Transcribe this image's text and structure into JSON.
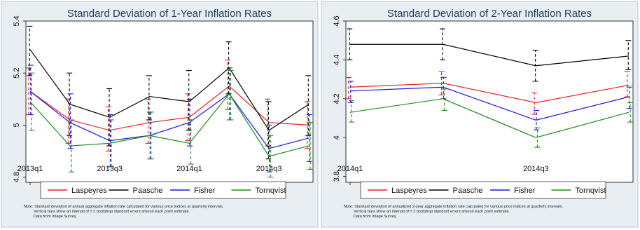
{
  "colors": {
    "Laspeyres": "#e8202a",
    "Paasche": "#000000",
    "Fisher": "#1a1adc",
    "Tornqvist": "#1f8a1f",
    "panel_bg": "#e9eef3",
    "plot_bg": "#ffffff",
    "title": "#1e3d5c"
  },
  "chart_data": [
    {
      "type": "line",
      "title": "Standard Deviation of 1-Year Inflation Rates",
      "xlabel": "",
      "ylabel": "",
      "grid": false,
      "legend_position": "bottom",
      "x": [
        "2013q1",
        "2013q2",
        "2013q3",
        "2013q4",
        "2014q1",
        "2014q2",
        "2014q3",
        "2014q4"
      ],
      "x_tick_labels": [
        "2013q1",
        "2013q3",
        "2014q1",
        "2014q3"
      ],
      "ylim": [
        4.78,
        5.4
      ],
      "y_ticks": [
        4.8,
        5,
        5.2,
        5.4
      ],
      "y_tick_labels": [
        "4.8",
        "5",
        "5.2",
        "5.4"
      ],
      "series": [
        {
          "name": "Laspeyres",
          "values": [
            5.13,
            5.02,
            4.98,
            5.01,
            5.03,
            5.15,
            5.01,
            5.0
          ],
          "err": [
            [
              5.04,
              5.22
            ],
            [
              4.93,
              5.1
            ],
            [
              4.9,
              5.07
            ],
            [
              4.93,
              5.1
            ],
            [
              4.94,
              5.12
            ],
            [
              5.06,
              5.25
            ],
            [
              4.92,
              5.1
            ],
            [
              4.91,
              5.09
            ]
          ]
        },
        {
          "name": "Paasche",
          "values": [
            5.29,
            5.08,
            5.03,
            5.11,
            5.09,
            5.22,
            4.98,
            5.08
          ],
          "err": [
            [
              5.19,
              5.38
            ],
            [
              4.96,
              5.2
            ],
            [
              4.92,
              5.14
            ],
            [
              5.02,
              5.19
            ],
            [
              4.98,
              5.21
            ],
            [
              5.12,
              5.32
            ],
            [
              4.87,
              5.09
            ],
            [
              4.96,
              5.19
            ]
          ]
        },
        {
          "name": "Fisher",
          "values": [
            5.13,
            5.01,
            4.94,
            4.96,
            5.01,
            5.12,
            4.91,
            4.95
          ],
          "err": [
            [
              5.04,
              5.23
            ],
            [
              4.91,
              5.12
            ],
            [
              4.84,
              5.04
            ],
            [
              4.87,
              5.05
            ],
            [
              4.92,
              5.1
            ],
            [
              5.02,
              5.22
            ],
            [
              4.82,
              5.0
            ],
            [
              4.86,
              5.04
            ]
          ]
        },
        {
          "name": "Tornqvist",
          "values": [
            5.09,
            4.92,
            4.93,
            4.96,
            4.93,
            5.12,
            4.88,
            4.92
          ],
          "err": [
            [
              4.98,
              5.2
            ],
            [
              4.82,
              5.02
            ],
            [
              4.84,
              5.02
            ],
            [
              4.87,
              5.05
            ],
            [
              4.85,
              5.02
            ],
            [
              5.02,
              5.21
            ],
            [
              4.8,
              4.96
            ],
            [
              4.83,
              5.01
            ]
          ]
        }
      ],
      "note_lines": [
        "Note: Standard deviation of annual aggregate inflation rate calculated for various price indices at quarterly intervals.",
        "Vertical bars show an interval of ± 2 bootstrap standard errors around each point estimate.",
        "Data from Intage Survey."
      ]
    },
    {
      "type": "line",
      "title": "Standard Deviation of 2-Year Inflation Rates",
      "xlabel": "",
      "ylabel": "",
      "grid": false,
      "legend_position": "bottom",
      "x": [
        "2014q1",
        "2014q2",
        "2014q3",
        "2014q4"
      ],
      "x_tick_labels": [
        "2014q1",
        "2014q3"
      ],
      "ylim": [
        3.77,
        4.6
      ],
      "y_ticks": [
        3.8,
        4,
        4.2,
        4.4,
        4.6
      ],
      "y_tick_labels": [
        "3.8",
        "4",
        "4.2",
        "4.4",
        "4.6"
      ],
      "series": [
        {
          "name": "Laspeyres",
          "values": [
            4.26,
            4.28,
            4.18,
            4.27
          ],
          "err": [
            [
              4.2,
              4.31
            ],
            [
              4.22,
              4.34
            ],
            [
              4.12,
              4.23
            ],
            [
              4.21,
              4.34
            ]
          ]
        },
        {
          "name": "Paasche",
          "values": [
            4.48,
            4.48,
            4.37,
            4.42
          ],
          "err": [
            [
              4.4,
              4.56
            ],
            [
              4.4,
              4.56
            ],
            [
              4.29,
              4.45
            ],
            [
              4.35,
              4.5
            ]
          ]
        },
        {
          "name": "Fisher",
          "values": [
            4.24,
            4.26,
            4.09,
            4.21
          ],
          "err": [
            [
              4.18,
              4.29
            ],
            [
              4.2,
              4.31
            ],
            [
              4.04,
              4.14
            ],
            [
              4.15,
              4.26
            ]
          ]
        },
        {
          "name": "Tornqvist",
          "values": [
            4.13,
            4.2,
            4.0,
            4.13
          ],
          "err": [
            [
              4.08,
              4.19
            ],
            [
              4.14,
              4.25
            ],
            [
              3.95,
              4.05
            ],
            [
              4.08,
              4.18
            ]
          ]
        }
      ],
      "note_lines": [
        "Note: Standard deviation of annualized 2-year aggregate inflation rate calculated for various price indices at quarterly intervals.",
        "Vertical bars show an interval of ± 2 bootstrap standard errors around each point estimate.",
        "Data from Intage Survey."
      ]
    }
  ]
}
